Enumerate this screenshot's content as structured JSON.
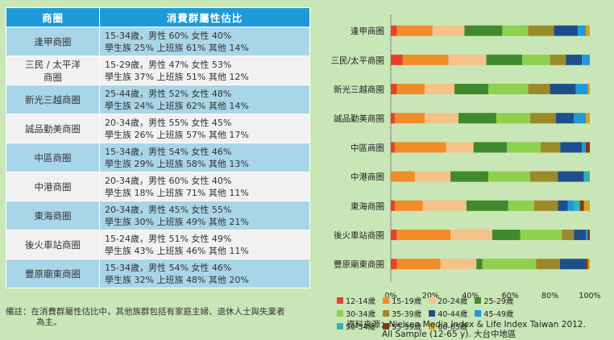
{
  "table": {
    "header_name": "商圈",
    "header_desc": "消費群屬性估比",
    "rows": [
      {
        "name": "逢甲商圈",
        "line1": "15-34歲，男性 60% 女性 40%",
        "line2": "學生族 25% 上班族 61% 其他 14%"
      },
      {
        "name": "三民 / 太平洋\n商圈",
        "line1": "15-29歲，男性 47% 女性 53%",
        "line2": "學生族 37% 上班族 51% 其他 12%"
      },
      {
        "name": "新光三越商圈",
        "line1": "25-44歲，男性 52% 女性 48%",
        "line2": "學生族 24% 上班族 62% 其他 14%"
      },
      {
        "name": "誠品勤美商圈",
        "line1": "20-34歲，男性 55% 女性 45%",
        "line2": "學生族 26% 上班族 57% 其他 17%"
      },
      {
        "name": "中區商圈",
        "line1": "15-34歲，男性 54% 女性 46%",
        "line2": "學生族 29% 上班族 58% 其他 13%"
      },
      {
        "name": "中港商圈",
        "line1": "20-34歲，男性 60% 女性 40%",
        "line2": "學生族 18% 上班族 71% 其他 11%"
      },
      {
        "name": "東海商圈",
        "line1": "20-34歲，男性 45% 女性 55%",
        "line2": "學生族 30% 上班族 49% 其他 21%"
      },
      {
        "name": "後火車站商圈",
        "line1": "15-24歲，男性 51% 女性 49%",
        "line2": "學生族 43% 上班族 46% 其他 11%"
      },
      {
        "name": "豐原廟東商圈",
        "line1": "15-34歲，男性 54% 女性 46%",
        "line2": "學生族 32% 上班族 48% 其他 20%"
      }
    ]
  },
  "note": "備註：在消費群屬性估比中，其他族群包括有家庭主婦、退休人士與失業者\n為主。",
  "source": {
    "line1": "資料來源：Nielsen Media Index & Life Index Taiwan 2012.",
    "line2": "All Sample (12-65 y). 大台中地區"
  },
  "chart_data": {
    "type": "bar",
    "orientation": "horizontal",
    "stacked": "percent",
    "categories": [
      "逢甲商圈",
      "三民/太平商圈",
      "新光三越商圈",
      "誠品勤美商圈",
      "中區商圈",
      "中港商圈",
      "東海商圈",
      "後火車站商圈",
      "豐原廟東商圈"
    ],
    "series": [
      {
        "name": "12-14歲",
        "color": "#e8402a",
        "values": [
          3,
          6,
          3,
          2,
          2,
          0,
          2,
          3,
          3
        ]
      },
      {
        "name": "15-19歲",
        "color": "#f28c28",
        "values": [
          18,
          23,
          14,
          15,
          26,
          12,
          14,
          27,
          22
        ]
      },
      {
        "name": "20-24歲",
        "color": "#f5c28a",
        "values": [
          16,
          19,
          15,
          17,
          14,
          18,
          22,
          21,
          18
        ]
      },
      {
        "name": "25-29歲",
        "color": "#3f8a2e",
        "values": [
          19,
          18,
          17,
          19,
          17,
          19,
          21,
          14,
          3
        ]
      },
      {
        "name": "30-34歲",
        "color": "#8fd04e",
        "values": [
          13,
          14,
          20,
          17,
          17,
          21,
          13,
          21,
          27
        ]
      },
      {
        "name": "35-39歲",
        "color": "#9b8a2a",
        "values": [
          13,
          8,
          11,
          13,
          10,
          14,
          12,
          6,
          12
        ]
      },
      {
        "name": "40-44歲",
        "color": "#1f4e8c",
        "values": [
          12,
          8,
          13,
          9,
          11,
          13,
          5,
          6,
          13
        ]
      },
      {
        "name": "45-49歲",
        "color": "#1e9ad8",
        "values": [
          4,
          4,
          6,
          6,
          2,
          0,
          3,
          1,
          0
        ]
      },
      {
        "name": "50-54歲",
        "color": "#2fb3b3",
        "values": [
          0,
          0,
          0,
          0,
          0,
          3,
          3,
          0,
          0
        ]
      },
      {
        "name": "55-59歲",
        "color": "#7a3a10",
        "values": [
          0,
          0,
          0,
          0,
          2,
          0,
          2,
          1,
          1
        ]
      },
      {
        "name": "60-65歲",
        "color": "#d9a21e",
        "values": [
          2,
          0,
          1,
          2,
          0,
          0,
          3,
          0,
          1
        ]
      }
    ],
    "xlim": [
      0,
      100
    ],
    "xticks": [
      "0%",
      "20%",
      "40%",
      "60%",
      "80%",
      "100%"
    ],
    "grid": false,
    "legend_position": "bottom"
  }
}
